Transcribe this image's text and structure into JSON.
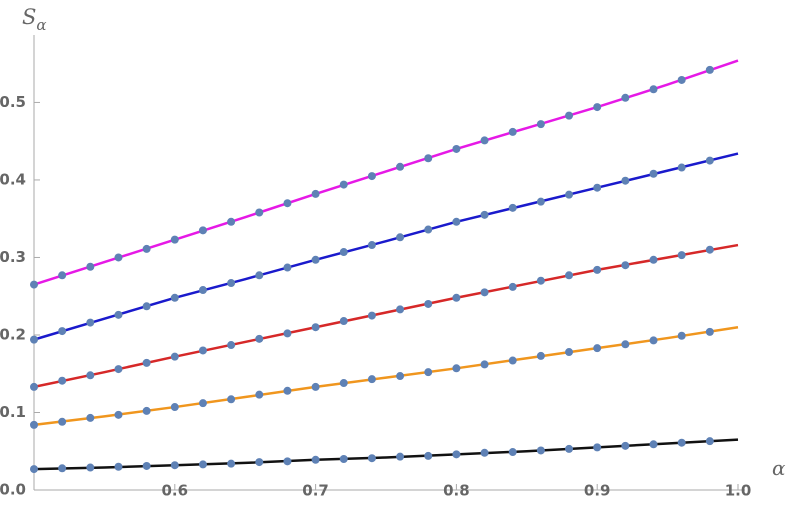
{
  "chart_data": [
    {
      "type": "line",
      "xlabel": "α",
      "ylabel_symbol": "S",
      "ylabel_subscript": "α",
      "xlim": [
        0.5,
        1.0
      ],
      "ylim": [
        0,
        0.587
      ],
      "xticks": [
        0.6,
        0.7,
        0.8,
        0.9,
        {
          "value": 1,
          "label": "1.0"
        }
      ],
      "yticks": [
        {
          "value": 0,
          "label": "0.0"
        },
        0.1,
        0.2,
        0.3,
        0.4,
        0.5
      ],
      "x": [
        0.5,
        0.55,
        0.6,
        0.65,
        0.7,
        0.75,
        0.8,
        0.85,
        0.9,
        0.95,
        1.0
      ],
      "series": [
        {
          "color": "#e619e6",
          "values": [
            0.265,
            0.294,
            0.323,
            0.352,
            0.382,
            0.411,
            0.44,
            0.467,
            0.494,
            0.523,
            0.554
          ]
        },
        {
          "color": "#1a1acc",
          "values": [
            0.194,
            0.221,
            0.248,
            0.272,
            0.297,
            0.321,
            0.346,
            0.368,
            0.39,
            0.412,
            0.434
          ]
        },
        {
          "color": "#d62828",
          "values": [
            0.133,
            0.152,
            0.172,
            0.191,
            0.21,
            0.229,
            0.248,
            0.266,
            0.284,
            0.3,
            0.316
          ]
        },
        {
          "color": "#f0961e",
          "values": [
            0.084,
            0.095,
            0.107,
            0.12,
            0.133,
            0.145,
            0.157,
            0.17,
            0.183,
            0.196,
            0.21
          ]
        },
        {
          "color": "#111111",
          "values": [
            0.027,
            0.029,
            0.032,
            0.035,
            0.039,
            0.042,
            0.046,
            0.05,
            0.055,
            0.06,
            0.065
          ]
        }
      ]
    },
    {
      "type": "scatter",
      "color": "#5e81b5",
      "x": [
        0.5,
        0.52,
        0.54,
        0.56,
        0.58,
        0.6,
        0.62,
        0.64,
        0.66,
        0.68,
        0.7,
        0.72,
        0.74,
        0.76,
        0.78,
        0.8,
        0.82,
        0.84,
        0.86,
        0.88,
        0.9,
        0.92,
        0.94,
        0.96,
        0.98
      ],
      "series": [
        {
          "values": [
            0.265,
            0.277,
            0.288,
            0.3,
            0.311,
            0.323,
            0.335,
            0.346,
            0.358,
            0.37,
            0.382,
            0.394,
            0.405,
            0.417,
            0.428,
            0.44,
            0.451,
            0.462,
            0.472,
            0.483,
            0.494,
            0.506,
            0.517,
            0.529,
            0.542
          ]
        },
        {
          "values": [
            0.194,
            0.205,
            0.216,
            0.226,
            0.237,
            0.248,
            0.258,
            0.267,
            0.277,
            0.287,
            0.297,
            0.307,
            0.316,
            0.326,
            0.336,
            0.346,
            0.355,
            0.364,
            0.372,
            0.381,
            0.39,
            0.399,
            0.408,
            0.416,
            0.425
          ]
        },
        {
          "values": [
            0.133,
            0.141,
            0.148,
            0.156,
            0.164,
            0.172,
            0.18,
            0.187,
            0.195,
            0.202,
            0.21,
            0.218,
            0.225,
            0.233,
            0.24,
            0.248,
            0.255,
            0.262,
            0.27,
            0.277,
            0.284,
            0.29,
            0.297,
            0.303,
            0.31
          ]
        },
        {
          "values": [
            0.084,
            0.088,
            0.093,
            0.097,
            0.102,
            0.107,
            0.112,
            0.117,
            0.123,
            0.128,
            0.133,
            0.138,
            0.143,
            0.147,
            0.152,
            0.157,
            0.162,
            0.167,
            0.173,
            0.178,
            0.183,
            0.188,
            0.193,
            0.199,
            0.204
          ]
        },
        {
          "values": [
            0.027,
            0.028,
            0.029,
            0.03,
            0.031,
            0.032,
            0.033,
            0.034,
            0.036,
            0.037,
            0.039,
            0.04,
            0.041,
            0.043,
            0.044,
            0.046,
            0.048,
            0.049,
            0.051,
            0.053,
            0.055,
            0.057,
            0.059,
            0.061,
            0.063
          ]
        }
      ]
    }
  ]
}
